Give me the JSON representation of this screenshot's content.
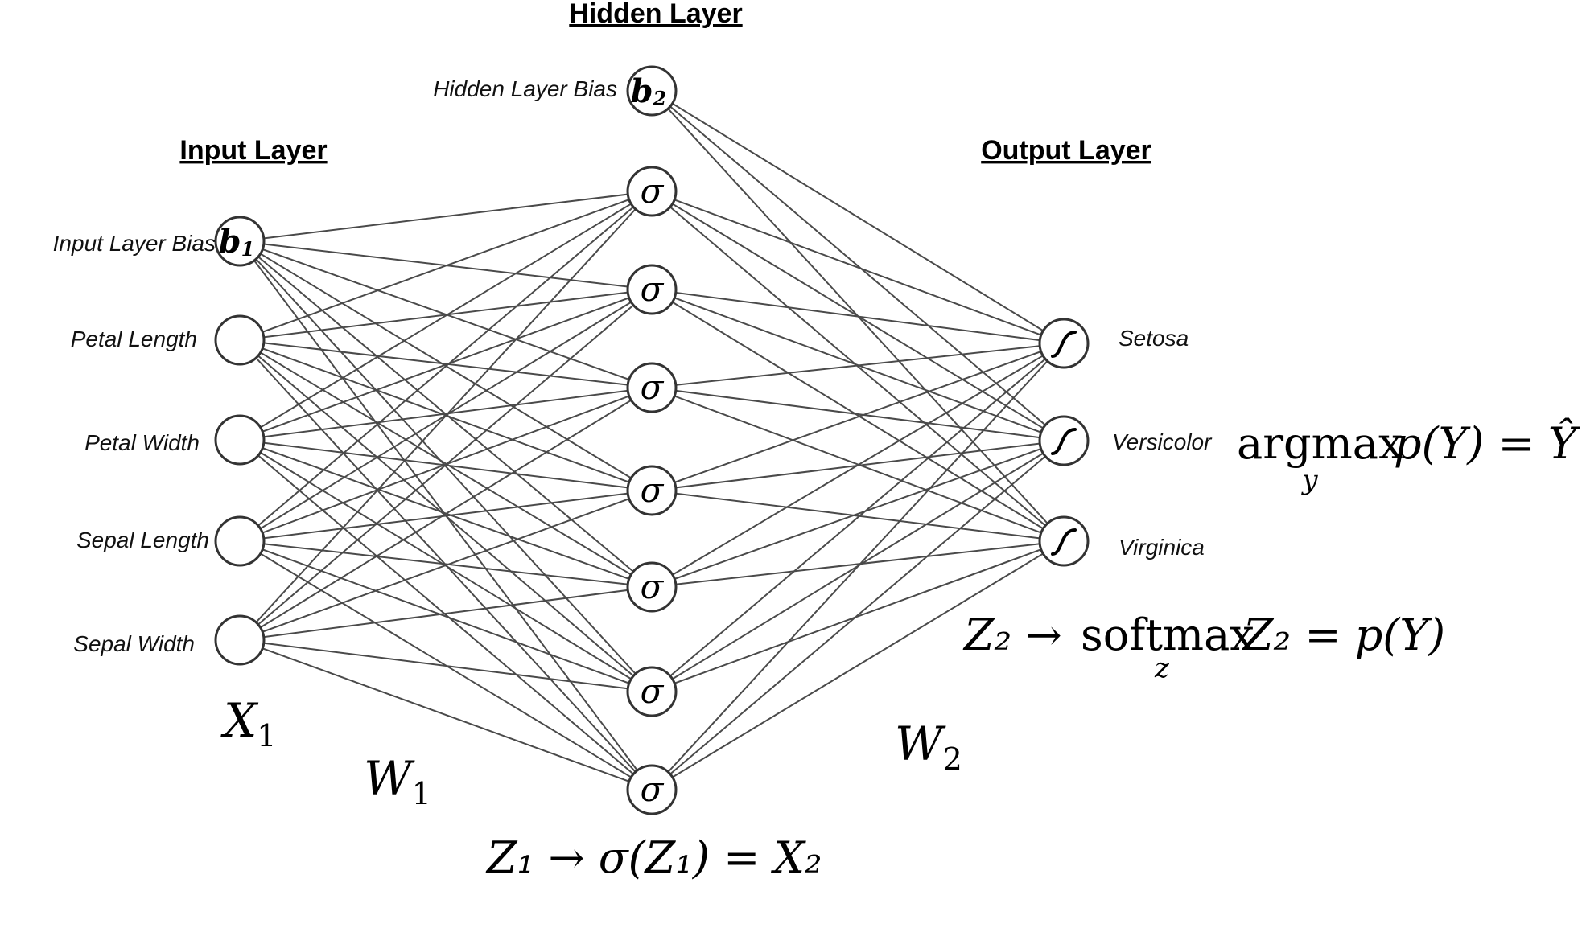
{
  "layers": {
    "input_title": "Input Layer",
    "hidden_title": "Hidden Layer",
    "output_title": "Output Layer"
  },
  "input_bias": {
    "label": "Input Layer Bias",
    "symbol": "b",
    "subscript": "1"
  },
  "hidden_bias": {
    "label": "Hidden Layer Bias",
    "symbol": "b",
    "subscript": "2"
  },
  "input_nodes": [
    "Petal Length",
    "Petal Width",
    "Sepal Length",
    "Sepal Width"
  ],
  "hidden_node_symbol": "σ",
  "hidden_node_count": 7,
  "output_nodes": [
    "Setosa",
    "Versicolor",
    "Virginica"
  ],
  "output_node_icon": "sigmoid-curve-icon",
  "math": {
    "x1": {
      "base": "X",
      "sub": "1"
    },
    "w1": {
      "base": "W",
      "sub": "1"
    },
    "w2": {
      "base": "W",
      "sub": "2"
    },
    "z1": "Z₁ → σ(Z₁) = X₂",
    "z2": {
      "lhs": "Z₂ →",
      "op": "softmax",
      "op_sub": "z",
      "rhs": "Z₂ = p(Y)"
    },
    "argmax": {
      "op": "argmax",
      "op_sub": "y",
      "rhs": "p(Y) = Ŷ"
    }
  },
  "colors": {
    "edge": "#4a4a4a",
    "node_stroke": "#333333",
    "background": "#ffffff"
  }
}
